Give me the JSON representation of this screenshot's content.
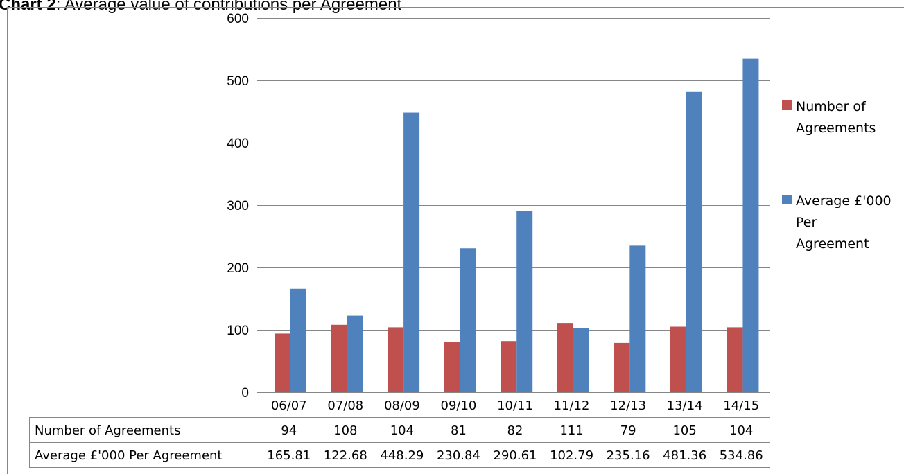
{
  "title_prefix": "Chart 2",
  "title_rest": ": Average value of contributions per Agreement",
  "chart_data": {
    "type": "bar",
    "title": "Chart 2: Average value of contributions per Agreement",
    "categories": [
      "06/07",
      "07/08",
      "08/09",
      "09/10",
      "10/11",
      "11/12",
      "12/13",
      "13/14",
      "14/15"
    ],
    "series": [
      {
        "name": "Number of Agreements",
        "legend_lines": [
          "Number of",
          "Agreements"
        ],
        "color": "#c0504d",
        "values": [
          94,
          108,
          104,
          81,
          82,
          111,
          79,
          105,
          104
        ],
        "table_values": [
          "94",
          "108",
          "104",
          "81",
          "82",
          "111",
          "79",
          "105",
          "104"
        ]
      },
      {
        "name": "Average £'000 Per Agreement",
        "legend_lines": [
          "Average £'000",
          "Per",
          "Agreement"
        ],
        "color": "#4f81bd",
        "values": [
          165.81,
          122.68,
          448.29,
          230.84,
          290.61,
          102.79,
          235.16,
          481.36,
          534.86
        ],
        "table_values": [
          "165.81",
          "122.68",
          "448.29",
          "230.84",
          "290.61",
          "102.79",
          "235.16",
          "481.36",
          "534.86"
        ]
      }
    ],
    "y_ticks": [
      "0",
      "100",
      "200",
      "300",
      "400",
      "500",
      "600"
    ],
    "ylim": [
      0,
      600
    ],
    "grid": true,
    "legend_position": "right",
    "data_table": true
  }
}
